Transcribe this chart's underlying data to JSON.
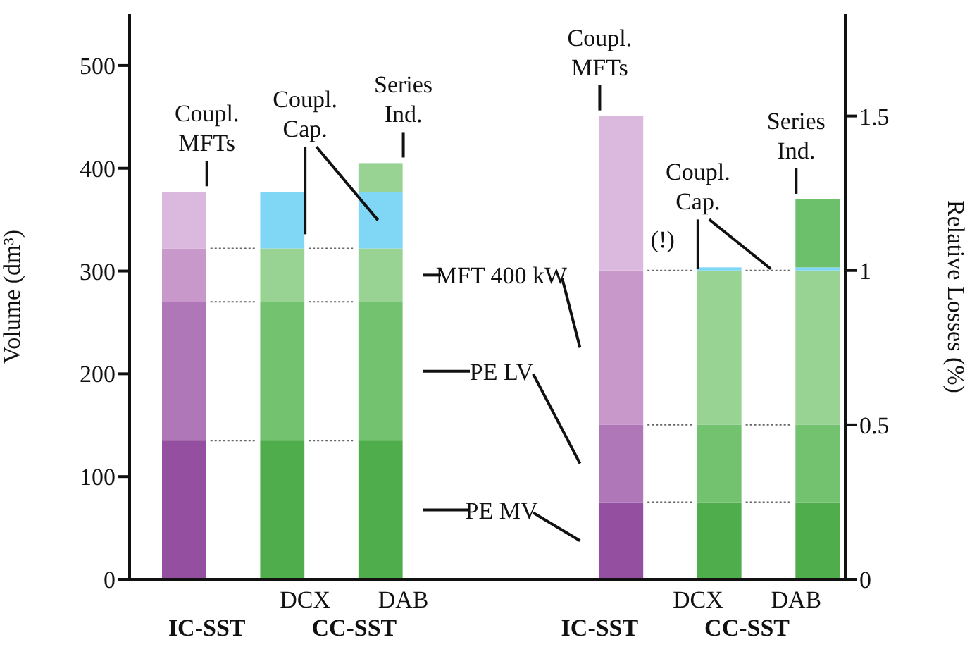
{
  "chart_data": {
    "type": "bar",
    "stacked": true,
    "categories": [
      null,
      "DCX",
      "DAB",
      null,
      null,
      "DCX",
      "DAB"
    ],
    "ylabel": "Volume (dm³)",
    "y2label": "Relative Losses (%)",
    "ylim": [
      0,
      550
    ],
    "yticks": [
      0,
      100,
      200,
      300,
      400,
      500
    ],
    "y2lim": [
      0,
      1.83
    ],
    "y2ticks": [
      0,
      0.5,
      1,
      1.5
    ],
    "series": [
      {
        "name": "PE MV",
        "axis": "y",
        "colors": [
          "#944fa0",
          "#4fae4b",
          "#4fae4b",
          null,
          null,
          null,
          null
        ],
        "values": [
          135,
          135,
          135,
          null,
          null,
          null,
          null
        ]
      },
      {
        "name": "PE LV",
        "axis": "y",
        "colors": [
          "#b077b8",
          "#72c26f",
          "#72c26f",
          null,
          null,
          null,
          null
        ],
        "values": [
          135,
          135,
          135,
          null,
          null,
          null,
          null
        ]
      },
      {
        "name": "MFT 400 kW",
        "axis": "y",
        "colors": [
          "#c898cb",
          "#98d394",
          "#98d394",
          null,
          null,
          null,
          null
        ],
        "values": [
          52,
          52,
          52,
          null,
          null,
          null,
          null
        ]
      },
      {
        "name": "Coupl. MFTs",
        "axis": "y",
        "color": "#dbb9df",
        "values": [
          55,
          null,
          null,
          null,
          null,
          null,
          null
        ]
      },
      {
        "name": "Coupl. Cap.",
        "axis": "y",
        "color": "#7fd6f5",
        "values": [
          null,
          55,
          55,
          null,
          null,
          null,
          null
        ]
      },
      {
        "name": "Series Ind.",
        "axis": "y",
        "color": "#98d394",
        "values": [
          null,
          null,
          28,
          null,
          null,
          null,
          null
        ]
      },
      {
        "axis": "y2",
        "colors": [
          null,
          null,
          null,
          null,
          "#944fa0",
          "#4fae4b",
          "#4fae4b"
        ],
        "values": [
          null,
          null,
          null,
          null,
          0.25,
          0.25,
          0.25
        ]
      },
      {
        "axis": "y2",
        "colors": [
          null,
          null,
          null,
          null,
          "#b077b8",
          "#72c26f",
          "#72c26f"
        ],
        "values": [
          null,
          null,
          null,
          null,
          0.25,
          0.25,
          0.25
        ]
      },
      {
        "axis": "y2",
        "colors": [
          null,
          null,
          null,
          null,
          "#c898cb",
          "#98d394",
          "#98d394"
        ],
        "values": [
          null,
          null,
          null,
          null,
          0.5,
          0.5,
          0.5
        ]
      },
      {
        "name": "Coupl. MFTs",
        "axis": "y2",
        "color": "#dbb9df",
        "values": [
          null,
          null,
          null,
          null,
          0.5,
          null,
          null
        ]
      },
      {
        "name": "Coupl. Cap.",
        "axis": "y2",
        "color": "#7fd6f5",
        "values": [
          null,
          null,
          null,
          null,
          null,
          0.01,
          0.01
        ]
      },
      {
        "name": "Series Ind.",
        "axis": "y2",
        "color": "#6cc06c",
        "values": [
          null,
          null,
          null,
          null,
          null,
          null,
          0.22
        ]
      }
    ],
    "annotations": [
      "IC-SST",
      "CC-SST",
      "IC-SST",
      "CC-SST",
      "(!)"
    ]
  }
}
